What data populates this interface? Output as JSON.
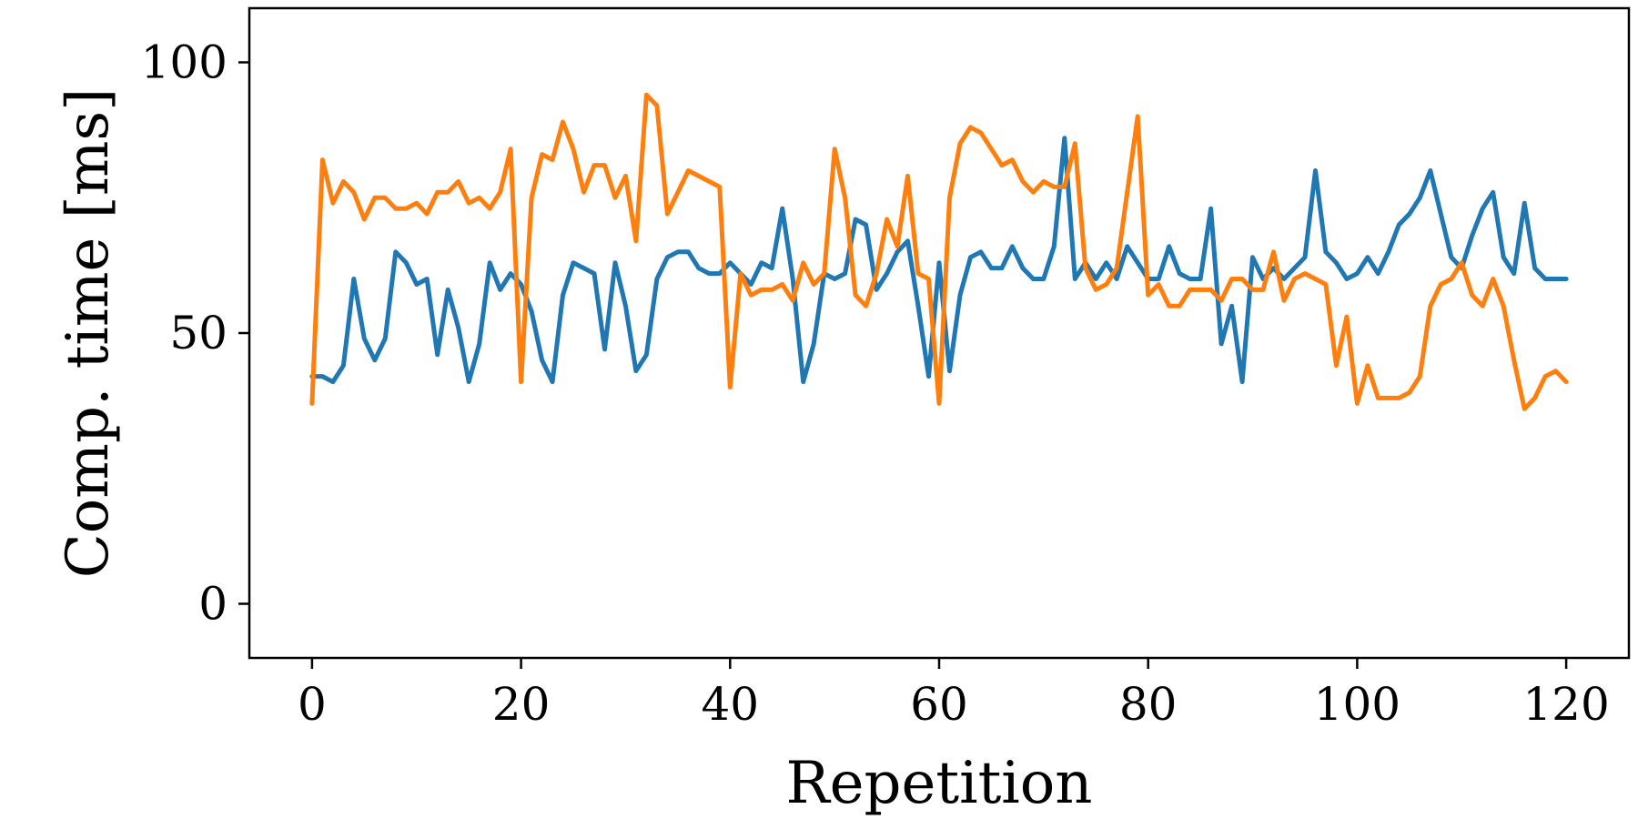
{
  "chart_data": {
    "type": "line",
    "title": "",
    "xlabel": "Repetition",
    "ylabel": "Comp. time [ms]",
    "xlim": [
      -6,
      126
    ],
    "ylim": [
      -10,
      110
    ],
    "xticks": [
      0,
      20,
      40,
      60,
      80,
      100,
      120
    ],
    "yticks": [
      0,
      50,
      100
    ],
    "grid": false,
    "legend": "none",
    "series": [
      {
        "color": "#1f77b4",
        "values": [
          42,
          42,
          41,
          44,
          60,
          49,
          45,
          49,
          65,
          63,
          59,
          60,
          46,
          58,
          51,
          41,
          48,
          63,
          58,
          61,
          59,
          54,
          45,
          41,
          57,
          63,
          62,
          61,
          47,
          63,
          55,
          43,
          46,
          60,
          64,
          65,
          65,
          62,
          61,
          61,
          63,
          61,
          59,
          63,
          62,
          73,
          60,
          41,
          48,
          61,
          60,
          61,
          71,
          70,
          58,
          61,
          65,
          67,
          55,
          42,
          63,
          43,
          57,
          64,
          65,
          62,
          62,
          66,
          62,
          60,
          60,
          66,
          86,
          60,
          63,
          60,
          63,
          60,
          66,
          63,
          60,
          60,
          66,
          61,
          60,
          60,
          73,
          48,
          55,
          41,
          64,
          60,
          62,
          60,
          62,
          64,
          80,
          65,
          63,
          60,
          61,
          64,
          61,
          65,
          70,
          72,
          75,
          80,
          72,
          64,
          62,
          68,
          73,
          76,
          64,
          61,
          74,
          62,
          60,
          60,
          60
        ]
      },
      {
        "color": "#ff7f0e",
        "values": [
          37,
          82,
          74,
          78,
          76,
          71,
          75,
          75,
          73,
          73,
          74,
          72,
          76,
          76,
          78,
          74,
          75,
          73,
          76,
          84,
          41,
          75,
          83,
          82,
          89,
          84,
          76,
          81,
          81,
          75,
          79,
          67,
          94,
          92,
          72,
          76,
          80,
          79,
          78,
          77,
          40,
          61,
          57,
          58,
          58,
          59,
          56,
          63,
          59,
          61,
          84,
          75,
          57,
          55,
          61,
          71,
          66,
          79,
          61,
          60,
          37,
          75,
          85,
          88,
          87,
          84,
          81,
          82,
          78,
          76,
          78,
          77,
          77,
          85,
          62,
          58,
          59,
          62,
          76,
          90,
          57,
          59,
          55,
          55,
          58,
          58,
          58,
          56,
          60,
          60,
          58,
          58,
          65,
          56,
          60,
          61,
          60,
          59,
          44,
          53,
          37,
          44,
          38,
          38,
          38,
          39,
          42,
          55,
          59,
          60,
          63,
          57,
          55,
          60,
          55,
          45,
          36,
          38,
          42,
          43,
          41
        ]
      }
    ]
  }
}
